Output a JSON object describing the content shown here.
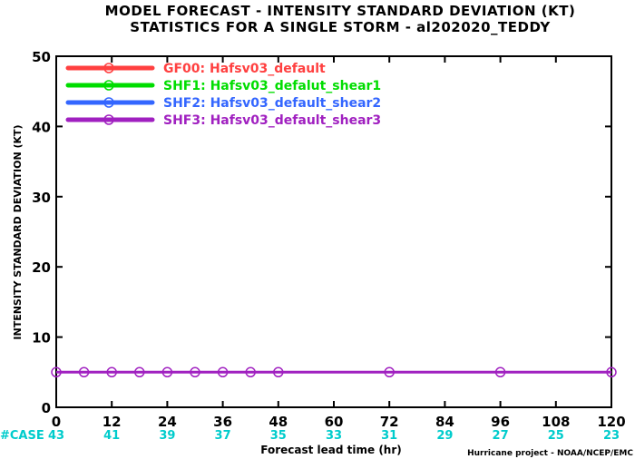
{
  "chart_data": {
    "type": "line",
    "title_line1": "MODEL FORECAST - INTENSITY STANDARD DEVIATION (KT)",
    "title_line2": "STATISTICS FOR A SINGLE STORM - al202020_TEDDY",
    "ylabel": "INTENSITY STANDARD DEVIATION (KT)",
    "xlabel": "Forecast lead time (hr)",
    "credit": "Hurricane project - NOAA/NCEP/EMC",
    "ylim": [
      0,
      50
    ],
    "xlim": [
      0,
      120
    ],
    "yticks": [
      0,
      10,
      20,
      30,
      40,
      50
    ],
    "xticks": [
      0,
      12,
      24,
      36,
      48,
      60,
      72,
      84,
      96,
      108,
      120
    ],
    "case_label": "#CASE",
    "case_counts": [
      {
        "x": 0,
        "n": "43"
      },
      {
        "x": 12,
        "n": "41"
      },
      {
        "x": 24,
        "n": "39"
      },
      {
        "x": 36,
        "n": "37"
      },
      {
        "x": 48,
        "n": "35"
      },
      {
        "x": 60,
        "n": "33"
      },
      {
        "x": 72,
        "n": "31"
      },
      {
        "x": 84,
        "n": "29"
      },
      {
        "x": 96,
        "n": "27"
      },
      {
        "x": 108,
        "n": "25"
      },
      {
        "x": 120,
        "n": "23"
      }
    ],
    "grid": false,
    "legend_position": "top-left",
    "series": [
      {
        "name": "GF00: Hafsv03_default",
        "color": "#ff4040",
        "x": [],
        "y": []
      },
      {
        "name": "SHF1: Hafsv03_defalut_shear1",
        "color": "#00dd00",
        "x": [],
        "y": []
      },
      {
        "name": "SHF2: Hafsv03_default_shear2",
        "color": "#3366ff",
        "x": [],
        "y": []
      },
      {
        "name": "SHF3: Hafsv03_default_shear3",
        "color": "#a020c0",
        "x": [
          0,
          6,
          12,
          18,
          24,
          30,
          36,
          42,
          48,
          72,
          96,
          120
        ],
        "y": [
          5,
          5,
          5,
          5,
          5,
          5,
          5,
          5,
          5,
          5,
          5,
          5
        ]
      }
    ],
    "colors": {
      "axis": "#000000",
      "case": "#00cccc"
    }
  }
}
